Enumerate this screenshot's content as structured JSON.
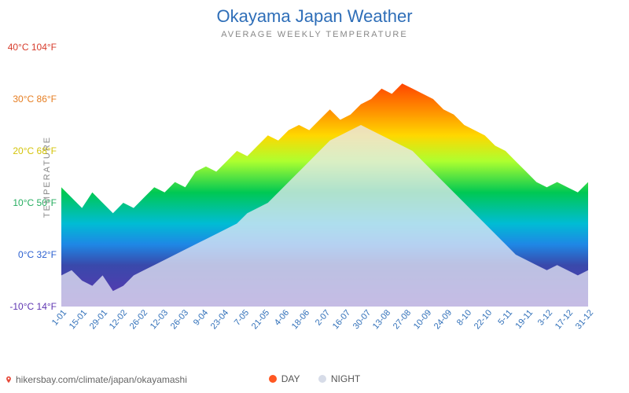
{
  "title": "Okayama Japan Weather",
  "subtitle": "AVERAGE WEEKLY TEMPERATURE",
  "y_axis_label": "TEMPERATURE",
  "y_axis": {
    "min_c": -10,
    "max_c": 40,
    "step_c": 10,
    "ticks": [
      {
        "c": 40,
        "label": "40°C 104°F",
        "color": "#d73c2c"
      },
      {
        "c": 30,
        "label": "30°C 86°F",
        "color": "#e67e22"
      },
      {
        "c": 20,
        "label": "20°C 68°F",
        "color": "#d4c40a"
      },
      {
        "c": 10,
        "label": "10°C 50°F",
        "color": "#27ae60"
      },
      {
        "c": 0,
        "label": "0°C 32°F",
        "color": "#2a5fd0"
      },
      {
        "c": -10,
        "label": "-10°C 14°F",
        "color": "#5e35b1"
      }
    ]
  },
  "x_axis": {
    "label_color": "#2e6eb8",
    "labels": [
      "1-01",
      "15-01",
      "29-01",
      "12-02",
      "26-02",
      "12-03",
      "26-03",
      "9-04",
      "23-04",
      "7-05",
      "21-05",
      "4-06",
      "18-06",
      "2-07",
      "16-07",
      "30-07",
      "13-08",
      "27-08",
      "10-09",
      "24-09",
      "8-10",
      "22-10",
      "5-11",
      "19-11",
      "3-12",
      "17-12",
      "31-12"
    ]
  },
  "chart": {
    "type": "area",
    "background_color": "#ffffff",
    "gradient_stops": [
      {
        "c": 40,
        "color": "#d73c2c"
      },
      {
        "c": 33,
        "color": "#ff4500"
      },
      {
        "c": 28,
        "color": "#ff8c00"
      },
      {
        "c": 23,
        "color": "#ffd700"
      },
      {
        "c": 18,
        "color": "#adff2f"
      },
      {
        "c": 12,
        "color": "#00c853"
      },
      {
        "c": 6,
        "color": "#00bcd4"
      },
      {
        "c": 2,
        "color": "#1e88e5"
      },
      {
        "c": -2,
        "color": "#3949ab"
      },
      {
        "c": -10,
        "color": "#5e35b1"
      }
    ],
    "night_overlay_color": "#e8eaf6",
    "night_overlay_opacity": 0.75,
    "day_values_c": [
      13,
      11,
      9,
      12,
      10,
      8,
      10,
      9,
      11,
      13,
      12,
      14,
      13,
      16,
      17,
      16,
      18,
      20,
      19,
      21,
      23,
      22,
      24,
      25,
      24,
      26,
      28,
      26,
      27,
      29,
      30,
      32,
      31,
      33,
      32,
      31,
      30,
      28,
      27,
      25,
      24,
      23,
      21,
      20,
      18,
      16,
      14,
      13,
      14,
      13,
      12,
      14
    ],
    "night_values_c": [
      -4,
      -3,
      -5,
      -6,
      -4,
      -7,
      -6,
      -4,
      -3,
      -2,
      -1,
      0,
      1,
      2,
      3,
      4,
      5,
      6,
      8,
      9,
      10,
      12,
      14,
      16,
      18,
      20,
      22,
      23,
      24,
      25,
      24,
      23,
      22,
      21,
      20,
      18,
      16,
      14,
      12,
      10,
      8,
      6,
      4,
      2,
      0,
      -1,
      -2,
      -3,
      -2,
      -3,
      -4,
      -3
    ]
  },
  "legend": {
    "day": {
      "label": "DAY",
      "color": "#ff5722"
    },
    "night": {
      "label": "NIGHT",
      "color": "#d7dce8"
    }
  },
  "footer_url": "hikersbay.com/climate/japan/okayamashi",
  "footer_url_color": "#666666",
  "title_color": "#2e6eb8",
  "subtitle_color": "#888888"
}
